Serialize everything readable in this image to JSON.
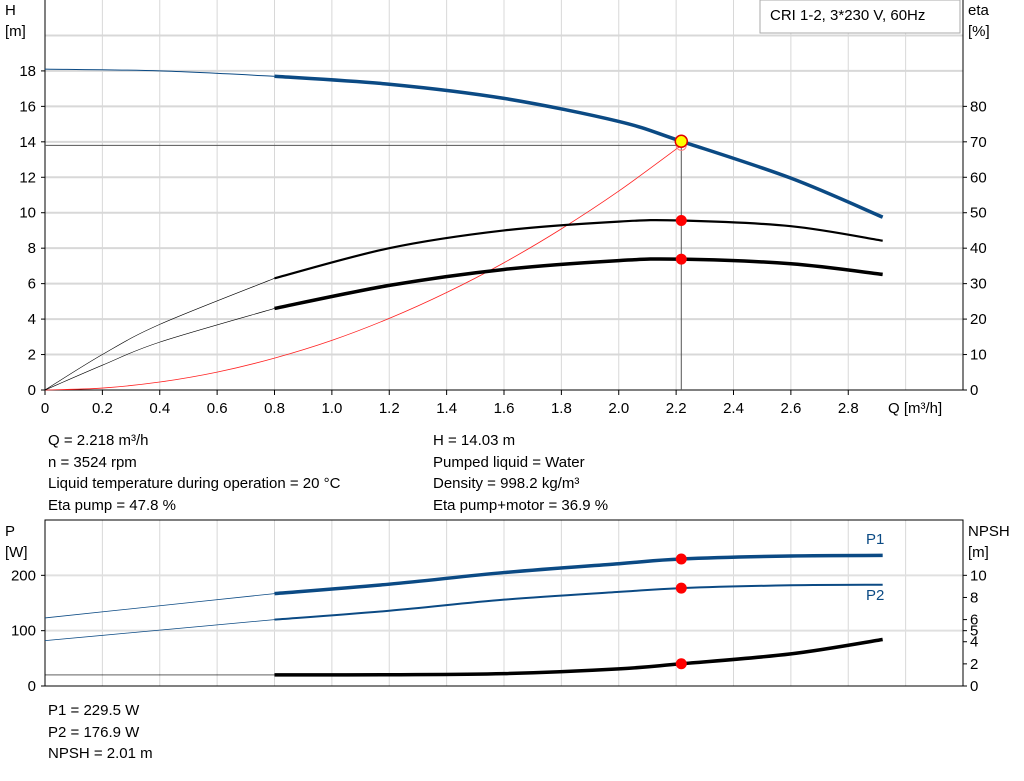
{
  "chart_data": [
    {
      "type": "line",
      "title": "CRI 1-2, 3*230 V, 60Hz",
      "xlabel": "Q [m³/h]",
      "ylabel": "H\n[m]",
      "y2label": "eta\n[%]",
      "xlim": [
        0,
        3.2
      ],
      "ylim": [
        0,
        22
      ],
      "y2lim": [
        0,
        110
      ],
      "xticks": [
        "0",
        "0.2",
        "0.4",
        "0.6",
        "0.8",
        "1.0",
        "1.2",
        "1.4",
        "1.6",
        "1.8",
        "2.0",
        "2.2",
        "2.4",
        "2.6",
        "2.8"
      ],
      "yticks": [
        "0",
        "2",
        "4",
        "6",
        "8",
        "10",
        "12",
        "14",
        "16",
        "18"
      ],
      "y2ticks": [
        "0",
        "10",
        "20",
        "30",
        "40",
        "50",
        "60",
        "70",
        "80"
      ],
      "grid": true,
      "colors": {
        "head": "#0b4a84",
        "eta": "#000000",
        "system": "#ff2020",
        "operating_point": "#ff0000",
        "duty_point": "#ffff00"
      },
      "series": [
        {
          "key": "H",
          "axis": "left",
          "x": [
            0,
            0.4,
            0.8,
            1.2,
            1.6,
            2.0,
            2.218,
            2.6,
            2.92
          ],
          "y": [
            18.1,
            18.0,
            17.7,
            17.25,
            16.45,
            15.15,
            14.03,
            11.95,
            9.75
          ]
        },
        {
          "key": "eta_pump",
          "axis": "right",
          "x": [
            0,
            0.2,
            0.4,
            0.8,
            1.2,
            1.6,
            2.0,
            2.218,
            2.6,
            2.92
          ],
          "y": [
            0,
            10,
            18.5,
            31.5,
            40,
            45,
            47.5,
            47.8,
            46.2,
            42.1
          ]
        },
        {
          "key": "eta_pump_motor",
          "axis": "right",
          "x": [
            0,
            0.2,
            0.4,
            0.8,
            1.2,
            1.6,
            2.0,
            2.218,
            2.6,
            2.92
          ],
          "y": [
            0,
            7,
            13.5,
            23,
            29.5,
            34,
            36.5,
            36.9,
            35.6,
            32.6
          ]
        },
        {
          "key": "system",
          "axis": "left",
          "x": [
            0,
            0.2,
            0.4,
            0.6,
            0.8,
            1.0,
            1.2,
            1.4,
            1.6,
            1.8,
            2.0,
            2.218
          ],
          "y": [
            0,
            0.11,
            0.45,
            1.01,
            1.8,
            2.8,
            4.04,
            5.5,
            7.18,
            9.09,
            11.22,
            13.8
          ]
        }
      ],
      "operating_point": {
        "Q": 2.218,
        "H": 14.03,
        "eta_pump": 47.8,
        "eta_pump_motor": 36.9,
        "H_system": 13.8
      }
    },
    {
      "type": "line",
      "ylabel": "P\n[W]",
      "y2label": "NPSH\n[m]",
      "xlim": [
        0,
        3.2
      ],
      "ylim": [
        0,
        300
      ],
      "y2lim": [
        0,
        15
      ],
      "yticks": [
        "0",
        "100",
        "200"
      ],
      "y2ticks": [
        "0",
        "2",
        "4",
        "5",
        "6",
        "8",
        "10"
      ],
      "grid": true,
      "series": [
        {
          "key": "P1",
          "name": "P1",
          "axis": "left",
          "x": [
            0,
            0.4,
            0.8,
            1.2,
            1.6,
            2.0,
            2.218,
            2.6,
            2.92
          ],
          "y": [
            123,
            145,
            167,
            184,
            205,
            221,
            229.5,
            235,
            236
          ]
        },
        {
          "key": "P2",
          "name": "P2",
          "axis": "left",
          "x": [
            0,
            0.4,
            0.8,
            1.2,
            1.6,
            2.0,
            2.218,
            2.6,
            2.92
          ],
          "y": [
            82,
            101,
            120,
            136,
            156,
            170,
            176.9,
            182,
            183
          ]
        },
        {
          "key": "NPSH",
          "axis": "right",
          "x": [
            0,
            0.8,
            1.2,
            1.6,
            2.0,
            2.218,
            2.6,
            2.92
          ],
          "y": [
            1.0,
            1.0,
            1.02,
            1.12,
            1.55,
            2.01,
            2.9,
            4.2
          ]
        }
      ],
      "operating_point": {
        "Q": 2.218,
        "P1": 229.5,
        "P2": 176.9,
        "NPSH": 2.01
      }
    }
  ],
  "results": {
    "left": [
      "Q = 2.218 m³/h",
      "n = 3524 rpm",
      "Liquid temperature during operation = 20 °C",
      "Eta pump = 47.8 %"
    ],
    "right": [
      "H = 14.03 m",
      "Pumped liquid = Water",
      "Density = 998.2 kg/m³",
      "Eta pump+motor = 36.9 %"
    ],
    "power": [
      "P1 = 229.5 W",
      "P2 = 176.9 W",
      "NPSH = 2.01 m"
    ]
  }
}
